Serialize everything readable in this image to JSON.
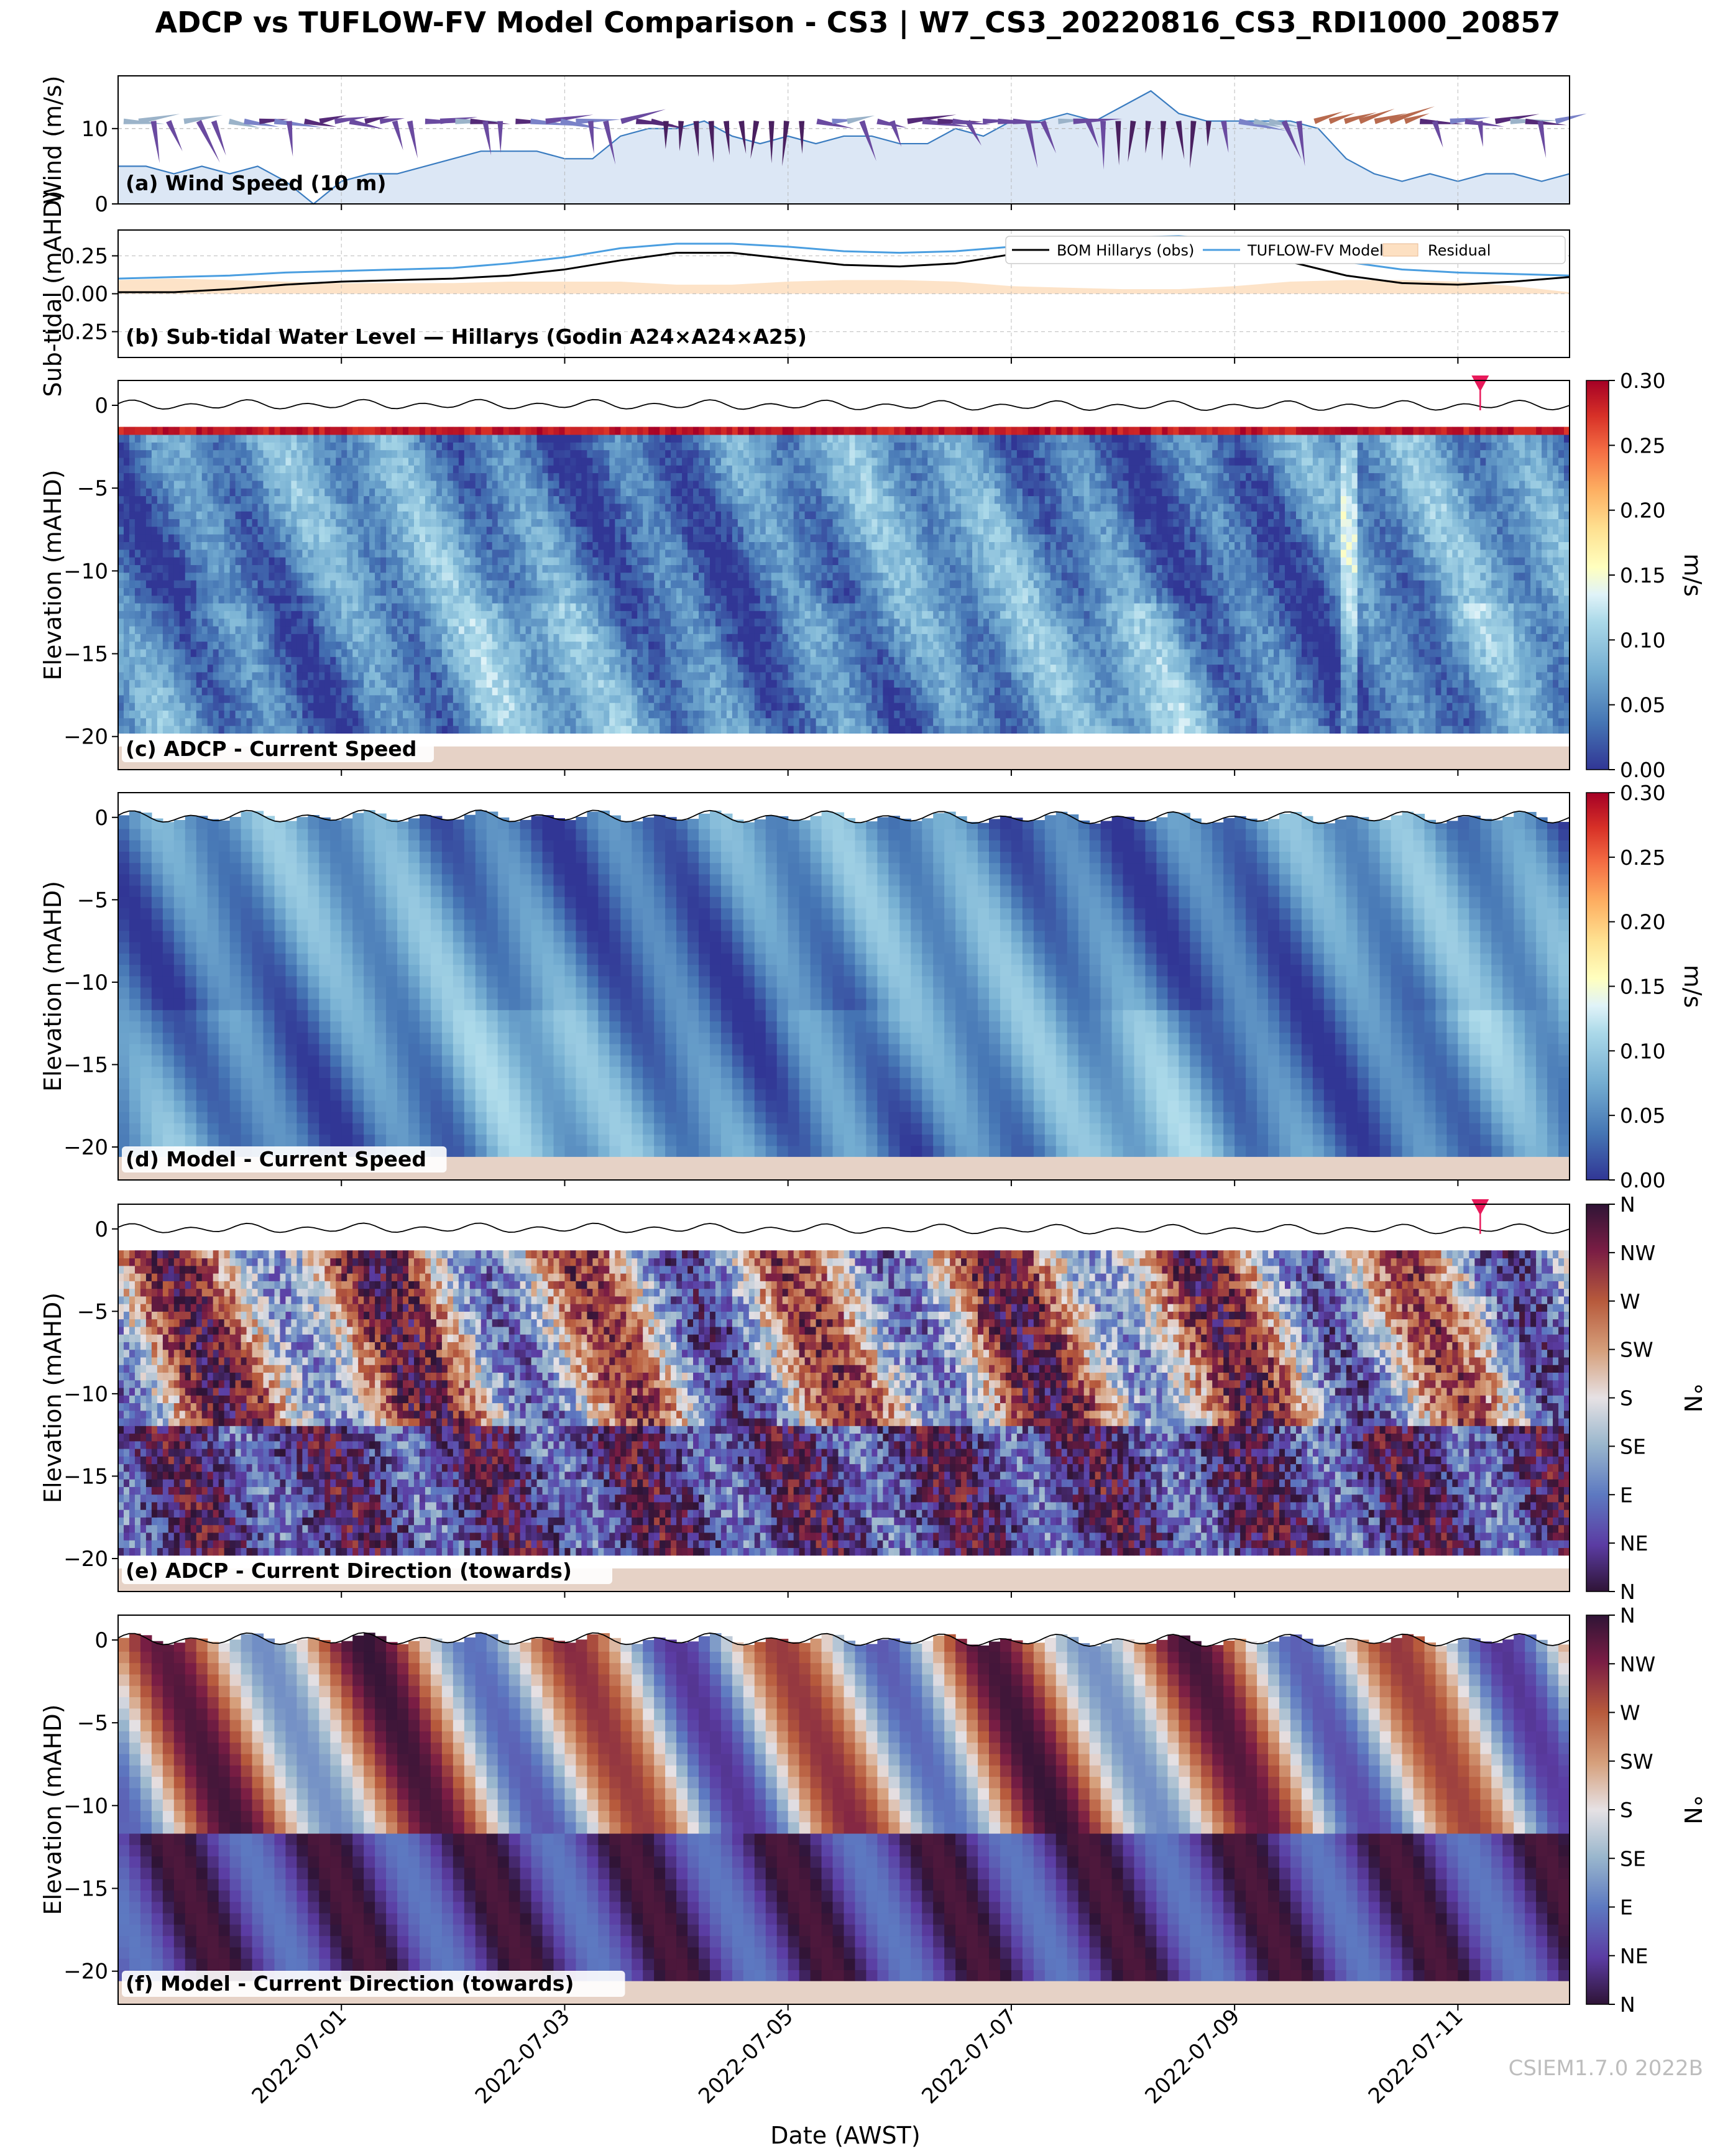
{
  "figure": {
    "title": "ADCP vs TUFLOW-FV Model Comparison - CS3 | W7_CS3_20220816_CS3_RDI1000_20857",
    "xlabel": "Date (AWST)",
    "watermark": "CSIEM1.7.0 2022B",
    "x_range": [
      "2022-06-29T00:00",
      "2022-07-12T00:00"
    ],
    "x_ticks": [
      "2022-07-01",
      "2022-07-03",
      "2022-07-05",
      "2022-07-07",
      "2022-07-09",
      "2022-07-11"
    ]
  },
  "colors": {
    "wind_fill": "#dce7f5",
    "wind_line": "#3a7cc0",
    "obs_line": "#000000",
    "model_line": "#4a9ee0",
    "residual_fill": "#fde0c2",
    "seabed": "#e6d2c6",
    "marker": "#e8195a"
  },
  "chart_data": [
    {
      "id": "a",
      "type": "area",
      "title": "(a) Wind Speed (10 m)",
      "ylabel": "Wind (m/s)",
      "ylim": [
        0,
        17
      ],
      "yticks": [
        "0",
        "10"
      ],
      "series": [
        {
          "name": "Wind speed",
          "x_days": [
            0,
            0.25,
            0.5,
            0.75,
            1,
            1.25,
            1.5,
            1.75,
            2,
            2.25,
            2.5,
            2.75,
            3,
            3.25,
            3.5,
            3.75,
            4,
            4.25,
            4.5,
            4.75,
            5,
            5.25,
            5.5,
            5.75,
            6,
            6.25,
            6.5,
            6.75,
            7,
            7.25,
            7.5,
            7.75,
            8,
            8.25,
            8.5,
            8.75,
            9,
            9.25,
            9.5,
            9.75,
            10,
            10.25,
            10.5,
            10.75,
            11,
            11.25,
            11.5,
            11.75,
            12,
            12.25,
            12.5,
            12.75,
            13
          ],
          "values": [
            5,
            5,
            4,
            5,
            4,
            5,
            3,
            0,
            3,
            4,
            4,
            5,
            6,
            7,
            7,
            7,
            6,
            6,
            9,
            10,
            10,
            11,
            9,
            8,
            9,
            8,
            9,
            9,
            8,
            8,
            10,
            9,
            11,
            11,
            12,
            11,
            13,
            15,
            12,
            11,
            11,
            11,
            11,
            10,
            6,
            4,
            3,
            4,
            3,
            4,
            4,
            3,
            4
          ]
        }
      ]
    },
    {
      "id": "b",
      "type": "line",
      "title": "(b) Sub-tidal Water Level — Hillarys (Godin A24×A24×A25)",
      "ylabel": "Sub-tidal (mAHD)",
      "ylim": [
        -0.42,
        0.42
      ],
      "yticks": [
        "0.25",
        "0.00",
        "−0.25"
      ],
      "legend": [
        "BOM Hillarys (obs)",
        "TUFLOW-FV Model",
        "Residual"
      ],
      "legend_position": "upper-right",
      "x_days": [
        0,
        0.5,
        1,
        1.5,
        2,
        2.5,
        3,
        3.5,
        4,
        4.5,
        5,
        5.5,
        6,
        6.5,
        7,
        7.5,
        8,
        8.5,
        9,
        9.5,
        10,
        10.5,
        11,
        11.5,
        12,
        12.5,
        13
      ],
      "series": [
        {
          "name": "BOM Hillarys (obs)",
          "values": [
            0.01,
            0.01,
            0.03,
            0.06,
            0.08,
            0.09,
            0.1,
            0.12,
            0.16,
            0.22,
            0.27,
            0.27,
            0.23,
            0.19,
            0.18,
            0.2,
            0.26,
            0.31,
            0.34,
            0.35,
            0.3,
            0.21,
            0.12,
            0.07,
            0.06,
            0.08,
            0.11
          ]
        },
        {
          "name": "TUFLOW-FV Model",
          "values": [
            0.1,
            0.11,
            0.12,
            0.14,
            0.15,
            0.16,
            0.17,
            0.2,
            0.24,
            0.3,
            0.33,
            0.33,
            0.31,
            0.28,
            0.27,
            0.28,
            0.31,
            0.35,
            0.37,
            0.38,
            0.35,
            0.29,
            0.21,
            0.16,
            0.14,
            0.13,
            0.12
          ]
        },
        {
          "name": "Residual",
          "values": [
            0.09,
            0.1,
            0.09,
            0.08,
            0.07,
            0.07,
            0.07,
            0.08,
            0.08,
            0.08,
            0.06,
            0.06,
            0.08,
            0.09,
            0.09,
            0.08,
            0.05,
            0.04,
            0.03,
            0.03,
            0.05,
            0.08,
            0.09,
            0.09,
            0.08,
            0.05,
            0.01
          ]
        }
      ]
    },
    {
      "id": "c",
      "type": "heatmap",
      "title": "(c) ADCP - Current Speed",
      "ylabel": "Elevation (mAHD)",
      "ylim": [
        -22,
        1.5
      ],
      "yticks": [
        "0",
        "−5",
        "−10",
        "−15",
        "−20"
      ],
      "colorbar": {
        "label": "m/s",
        "range": [
          0,
          0.3
        ],
        "ticks": [
          "0.00",
          "0.05",
          "0.10",
          "0.15",
          "0.20",
          "0.25",
          "0.30"
        ],
        "colormap": "RdYlBu_r"
      },
      "seabed_m": -20.6,
      "marker_day": 12.2
    },
    {
      "id": "d",
      "type": "heatmap",
      "title": "(d) Model - Current Speed",
      "ylabel": "Elevation (mAHD)",
      "ylim": [
        -22,
        1.5
      ],
      "yticks": [
        "0",
        "−5",
        "−10",
        "−15",
        "−20"
      ],
      "colorbar": {
        "label": "m/s",
        "range": [
          0,
          0.3
        ],
        "ticks": [
          "0.00",
          "0.05",
          "0.10",
          "0.15",
          "0.20",
          "0.25",
          "0.30"
        ],
        "colormap": "RdYlBu_r"
      },
      "seabed_m": -20.6
    },
    {
      "id": "e",
      "type": "heatmap",
      "title": "(e) ADCP - Current Direction (towards)",
      "ylabel": "Elevation (mAHD)",
      "ylim": [
        -22,
        1.5
      ],
      "yticks": [
        "0",
        "−5",
        "−10",
        "−15",
        "−20"
      ],
      "colorbar": {
        "label": "°N",
        "range": [
          0,
          360
        ],
        "ticks": [
          "N",
          "NE",
          "E",
          "SE",
          "S",
          "SW",
          "W",
          "NW",
          "N"
        ],
        "colormap": "twilight_shifted"
      },
      "seabed_m": -20.6,
      "marker_day": 12.2
    },
    {
      "id": "f",
      "type": "heatmap",
      "title": "(f) Model - Current Direction (towards)",
      "ylabel": "Elevation (mAHD)",
      "ylim": [
        -22,
        1.5
      ],
      "yticks": [
        "0",
        "−5",
        "−10",
        "−15",
        "−20"
      ],
      "colorbar": {
        "label": "°N",
        "range": [
          0,
          360
        ],
        "ticks": [
          "N",
          "NE",
          "E",
          "SE",
          "S",
          "SW",
          "W",
          "NW",
          "N"
        ],
        "colormap": "twilight_shifted"
      },
      "seabed_m": -20.6
    }
  ]
}
